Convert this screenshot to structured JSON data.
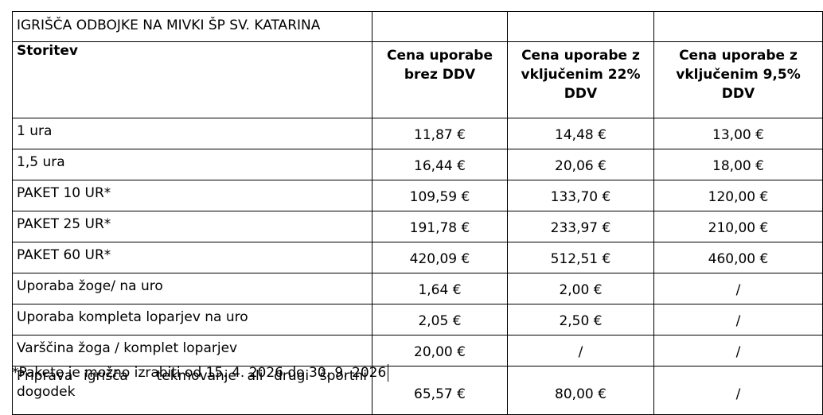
{
  "table": {
    "title": "IGRIŠČA ODBOJKE NA MIVKI ŠP SV. KATARINA",
    "headers": {
      "service": "Storitev",
      "net": [
        "Cena uporabe",
        "brez DDV"
      ],
      "vat22": [
        "Cena uporabe z",
        "vključenim 22%",
        "DDV"
      ],
      "vat95": [
        "Cena uporabe z",
        "vključenim 9,5%",
        "DDV"
      ]
    },
    "rows": [
      {
        "service": "1 ura",
        "net": "11,87 €",
        "vat22": "14,48 €",
        "vat95": "13,00 €"
      },
      {
        "service": "1,5 ura",
        "net": "16,44 €",
        "vat22": "20,06 €",
        "vat95": "18,00 €"
      },
      {
        "service": "PAKET 10 UR*",
        "net": "109,59 €",
        "vat22": "133,70 €",
        "vat95": "120,00 €"
      },
      {
        "service": "PAKET 25 UR*",
        "net": "191,78 €",
        "vat22": "233,97 €",
        "vat95": "210,00 €"
      },
      {
        "service": "PAKET 60 UR*",
        "net": "420,09 €",
        "vat22": "512,51 €",
        "vat95": "460,00 €"
      },
      {
        "service": "Uporaba žoge/ na uro",
        "net": "1,64 €",
        "vat22": "2,00 €",
        "vat95": "/"
      },
      {
        "service": "Uporaba kompleta loparjev na uro",
        "net": "2,05 €",
        "vat22": "2,50 €",
        "vat95": "/"
      },
      {
        "service": "Varščina žoga / komplet loparjev",
        "net": "20,00 €",
        "vat22": "/",
        "vat95": "/"
      },
      {
        "service": "Priprava igrišča – tekmovanje ali drugi športni dogodek",
        "net": "65,57 €",
        "vat22": "80,00 €",
        "vat95": "/"
      }
    ]
  },
  "footnote": "*Pakete je možno izrabiti od 15. 4. 2026 do 30. 9. 2026"
}
